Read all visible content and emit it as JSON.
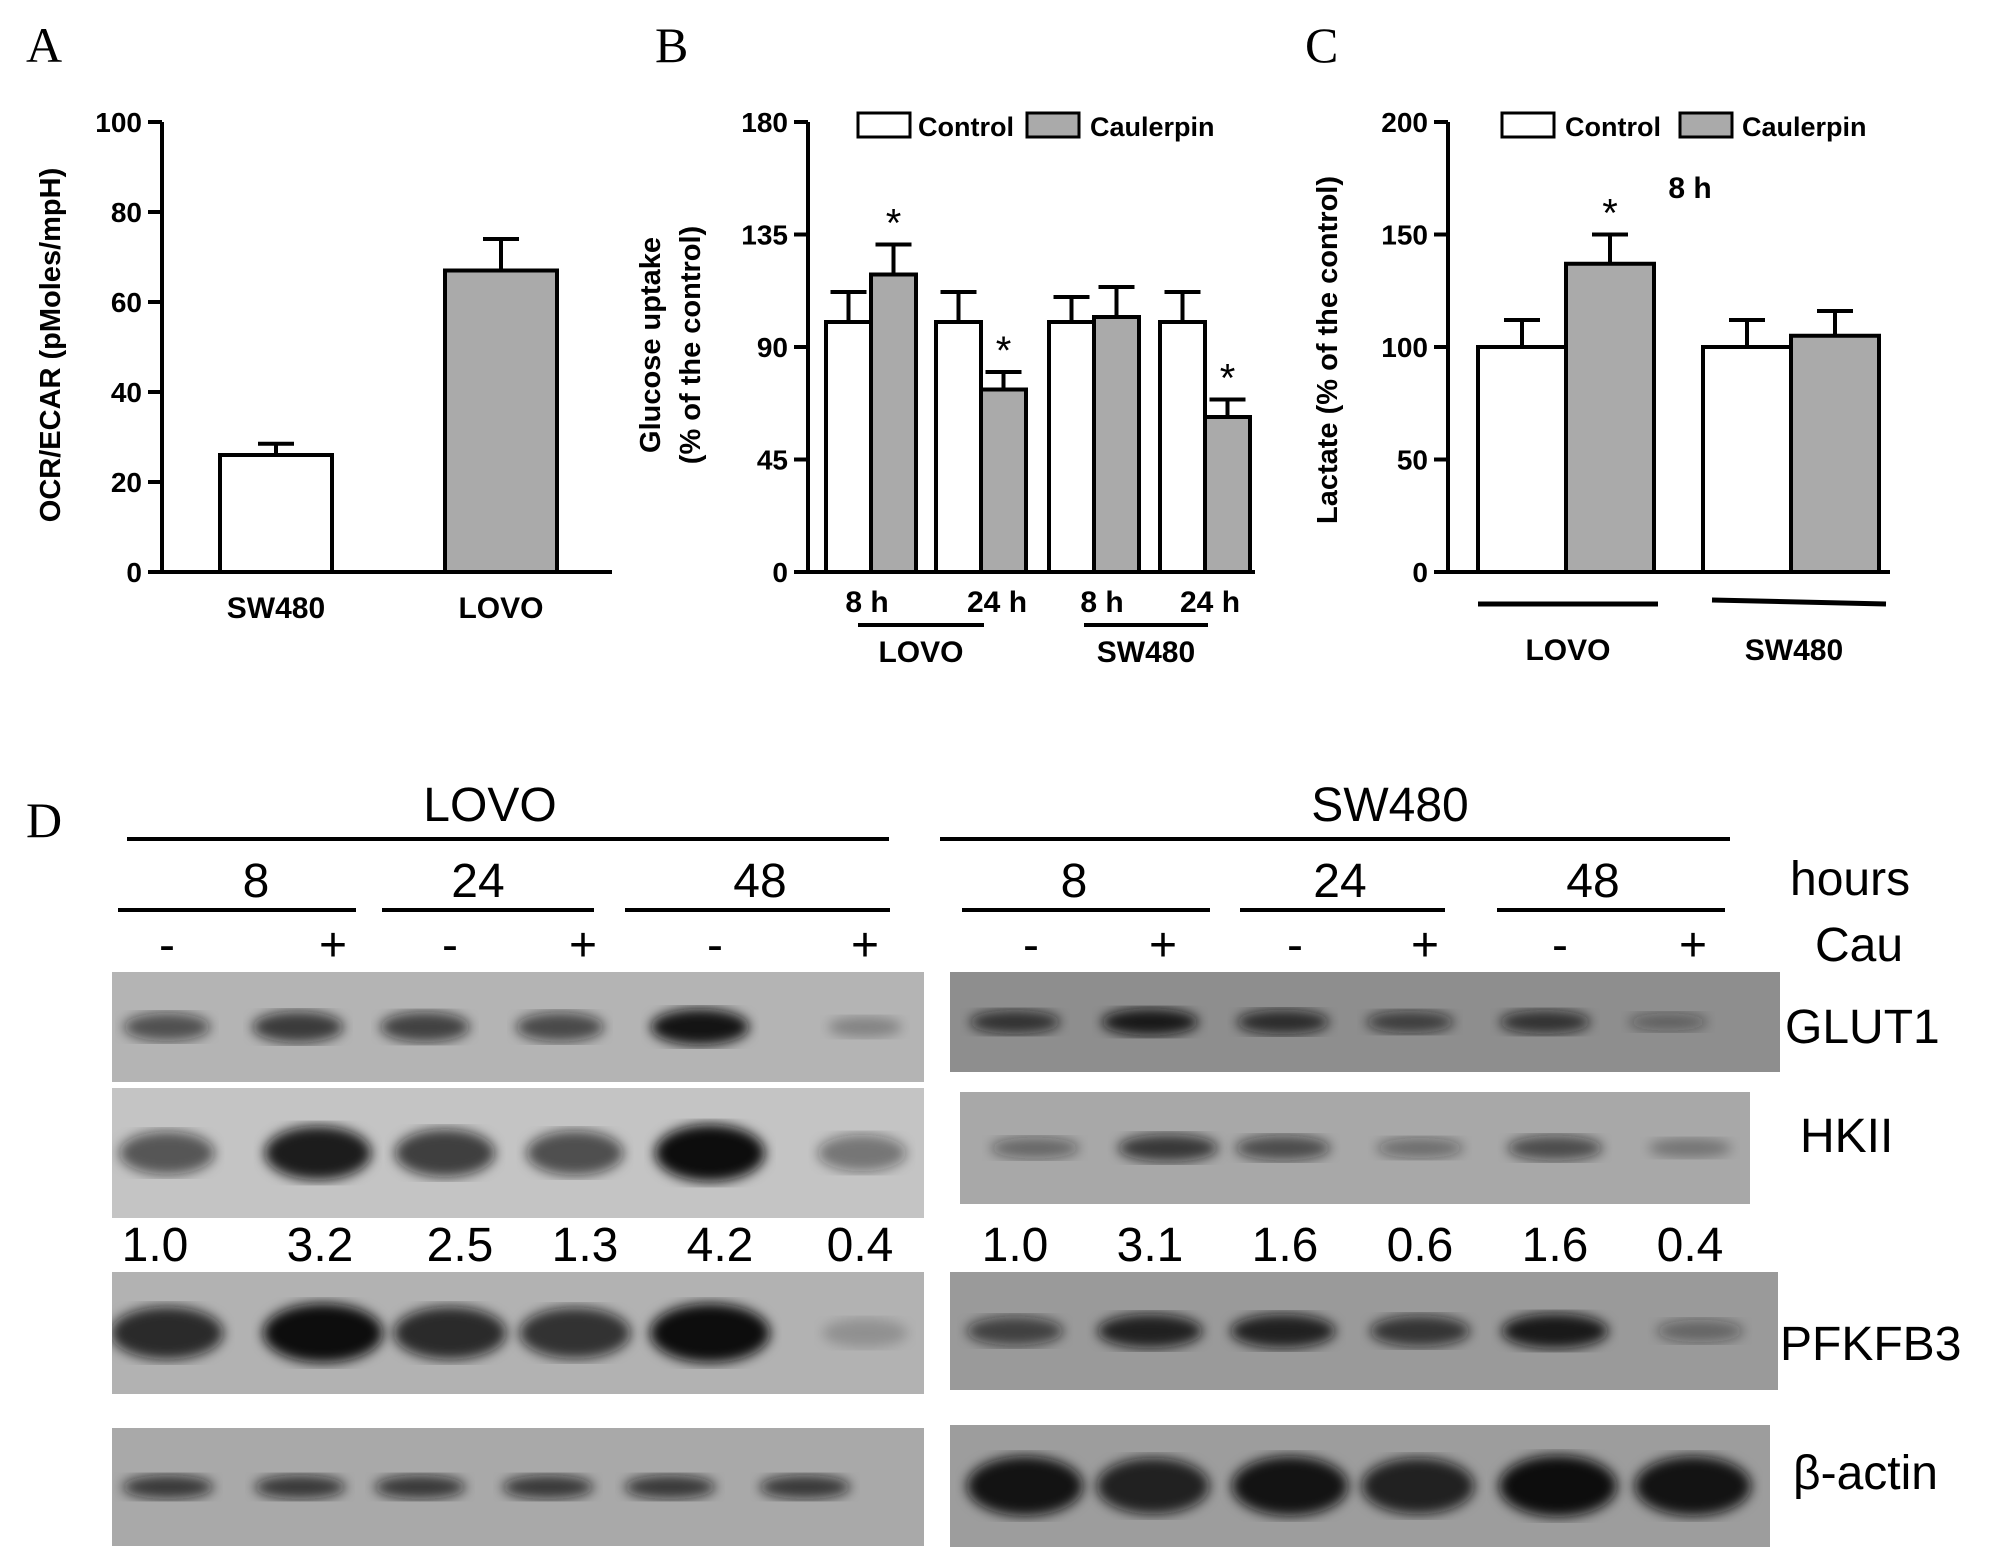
{
  "panels": {
    "a": "A",
    "b": "B",
    "c": "C",
    "d": "D"
  },
  "chart_data": [
    {
      "type": "bar",
      "panel": "A",
      "ylabel": "OCR/ECAR (pMoles/mpH)",
      "xlabel": "",
      "categories": [
        "SW480",
        "LOVO"
      ],
      "values": [
        26,
        67
      ],
      "errors": [
        2.5,
        7
      ],
      "bar_colors": [
        "#ffffff",
        "#aaaaaa"
      ],
      "ylim": [
        0,
        100
      ],
      "yticks": [
        "0",
        "20",
        "40",
        "60",
        "80",
        "100"
      ]
    },
    {
      "type": "bar",
      "panel": "B",
      "ylabel": "Glucose uptake\n(% of the control)",
      "ylim": [
        0,
        180
      ],
      "yticks": [
        "0",
        "45",
        "90",
        "135",
        "180"
      ],
      "categories": [
        "8 h",
        "24 h",
        "8 h",
        "24 h"
      ],
      "groups": [
        "LOVO",
        "SW480"
      ],
      "series": [
        {
          "name": "Control",
          "values": [
            100,
            100,
            100,
            100
          ],
          "errors": [
            12,
            12,
            10,
            12
          ],
          "color": "#ffffff"
        },
        {
          "name": "Caulerpin",
          "values": [
            119,
            73,
            102,
            62
          ],
          "errors": [
            12,
            7,
            12,
            7
          ],
          "color": "#aaaaaa"
        }
      ],
      "significance": [
        "*",
        "*",
        "",
        "*"
      ]
    },
    {
      "type": "bar",
      "panel": "C",
      "ylabel": "Lactate (% of the control)",
      "ylim": [
        0,
        200
      ],
      "yticks": [
        "0",
        "50",
        "100",
        "150",
        "200"
      ],
      "categories": [
        "LOVO",
        "SW480"
      ],
      "annotation": "8 h",
      "series": [
        {
          "name": "Control",
          "values": [
            100,
            100
          ],
          "errors": [
            12,
            12
          ],
          "color": "#ffffff"
        },
        {
          "name": "Caulerpin",
          "values": [
            137,
            105
          ],
          "errors": [
            13,
            11
          ],
          "color": "#aaaaaa"
        }
      ],
      "significance": [
        "*",
        ""
      ]
    }
  ],
  "blot": {
    "cell_lines": [
      "LOVO",
      "SW480"
    ],
    "times": [
      "8",
      "24",
      "48"
    ],
    "hours_label": "hours",
    "treatment_label": "Cau",
    "signs": [
      "-",
      "+",
      "-",
      "+",
      "-",
      "+"
    ],
    "proteins": [
      "GLUT1",
      "HKII",
      "PFKFB3",
      "β-actin"
    ],
    "quantification": {
      "LOVO": [
        "1.0",
        "3.2",
        "2.5",
        "1.3",
        "4.2",
        "0.4"
      ],
      "SW480": [
        "1.0",
        "3.1",
        "1.6",
        "0.6",
        "1.6",
        "0.4"
      ]
    },
    "band_intensity": {
      "LOVO": {
        "GLUT1": [
          0.55,
          0.7,
          0.65,
          0.6,
          0.95,
          0.15
        ],
        "HKII": [
          0.55,
          0.9,
          0.7,
          0.6,
          1.0,
          0.35
        ],
        "PFKFB3": [
          0.8,
          1.0,
          0.8,
          0.75,
          1.0,
          0.05
        ],
        "β-actin": [
          0.7,
          0.7,
          0.7,
          0.7,
          0.7,
          0.7
        ]
      },
      "SW480": {
        "GLUT1": [
          0.7,
          0.9,
          0.75,
          0.6,
          0.7,
          0.3
        ],
        "HKII": [
          0.35,
          0.7,
          0.55,
          0.3,
          0.55,
          0.2
        ],
        "PFKFB3": [
          0.6,
          0.85,
          0.85,
          0.7,
          0.9,
          0.3
        ],
        "β-actin": [
          0.95,
          0.85,
          0.95,
          0.85,
          1.0,
          0.95
        ]
      }
    }
  }
}
